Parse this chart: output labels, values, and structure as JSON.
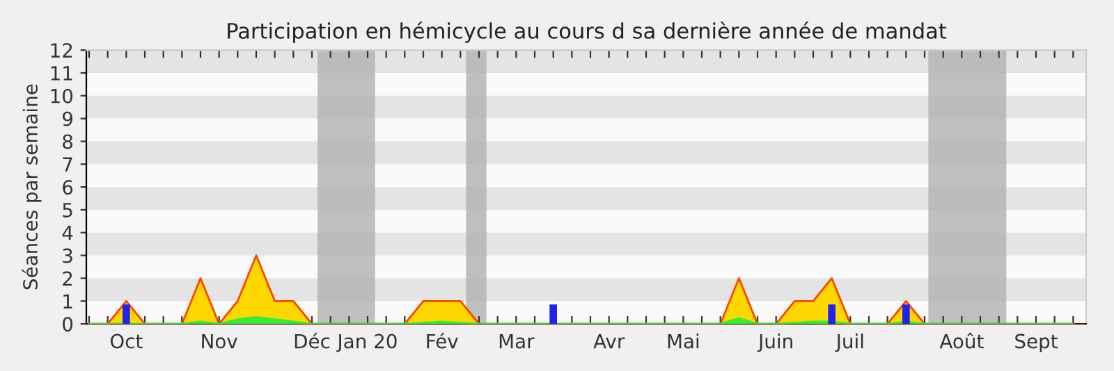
{
  "chart_data": {
    "type": "area",
    "title": "Participation en hémicycle au cours d sa dernière année de mandat",
    "ylabel": "Séances par semaine",
    "categories": [
      null,
      null,
      "Oct",
      null,
      null,
      null,
      null,
      "Nov",
      null,
      null,
      null,
      null,
      "Déc",
      null,
      null,
      "Jan 20",
      null,
      null,
      null,
      "Fév",
      null,
      null,
      null,
      "Mar",
      null,
      null,
      null,
      null,
      "Avr",
      null,
      null,
      null,
      "Mai",
      null,
      null,
      null,
      null,
      "Juin",
      null,
      null,
      null,
      "Juil",
      null,
      null,
      null,
      null,
      null,
      "Août",
      null,
      null,
      null,
      "Sept",
      null,
      null
    ],
    "series": [
      {
        "color": "#ffd700",
        "values": [
          0,
          0,
          1,
          0,
          0,
          0,
          2,
          0,
          1,
          3,
          1,
          1,
          0,
          0,
          0,
          0,
          0,
          0,
          1,
          1,
          1,
          0,
          0,
          0,
          0,
          0,
          0,
          0,
          0,
          0,
          0,
          0,
          0,
          0,
          0,
          2,
          0,
          0,
          1,
          1,
          2,
          0,
          0,
          0,
          1,
          0,
          0,
          0,
          0,
          0,
          0,
          0,
          0,
          0
        ]
      },
      {
        "color": "#33ee33",
        "values": [
          0,
          0,
          0,
          0,
          0,
          0,
          0.1,
          0,
          0.2,
          0.3,
          0.2,
          0.1,
          0,
          0,
          0,
          0,
          0,
          0,
          0.05,
          0.1,
          0.05,
          0,
          0,
          0,
          0,
          0,
          0,
          0,
          0,
          0,
          0,
          0,
          0,
          0,
          0,
          0.25,
          0,
          0,
          0.05,
          0.1,
          0.1,
          0,
          0,
          0,
          0.1,
          0,
          0,
          0,
          0,
          0,
          0,
          0,
          0,
          0
        ]
      },
      {
        "type": "bar",
        "color": "#2222ee",
        "values": [
          null,
          null,
          0.85,
          null,
          null,
          null,
          null,
          null,
          null,
          null,
          null,
          null,
          null,
          null,
          null,
          null,
          null,
          null,
          null,
          null,
          null,
          null,
          null,
          null,
          null,
          0.85,
          null,
          null,
          null,
          null,
          null,
          null,
          null,
          null,
          null,
          null,
          null,
          null,
          null,
          null,
          0.85,
          null,
          null,
          null,
          0.85,
          null,
          null,
          null,
          null,
          null,
          null,
          null,
          null,
          null
        ]
      }
    ],
    "ylim": [
      0,
      12
    ],
    "yticks": [
      0,
      1,
      2,
      3,
      4,
      5,
      6,
      7,
      8,
      9,
      10,
      11,
      12
    ],
    "grid": false
  }
}
